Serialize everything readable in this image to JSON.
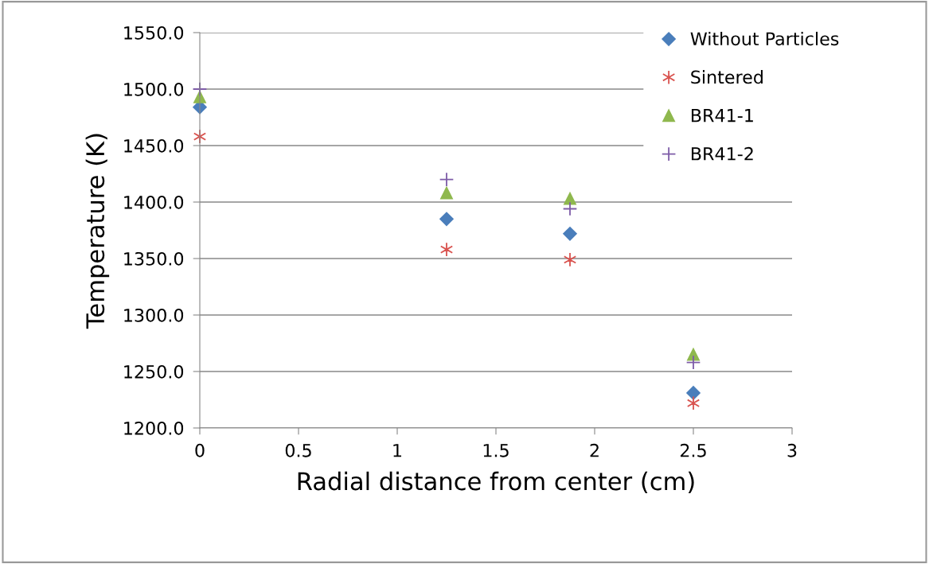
{
  "chart_data": {
    "type": "scatter",
    "xlabel": "Radial distance from center (cm)",
    "ylabel": "Temperature (K)",
    "x": [
      0,
      1.25,
      1.875,
      2.5
    ],
    "series": [
      {
        "name": "Without Particles",
        "color": "#4a7ebb",
        "marker": "diamond",
        "values": [
          1484,
          1385,
          1372,
          1231
        ]
      },
      {
        "name": "Sintered",
        "color": "#d9534f",
        "values": [
          1458,
          1358,
          1349,
          1222
        ]
      },
      {
        "name": "BR41-1",
        "color": "#8fb84e",
        "marker": "triangle",
        "values": [
          1493,
          1408,
          1403,
          1265
        ]
      },
      {
        "name": "BR41-2",
        "color": "#7e5ca8",
        "marker": "cross",
        "values": [
          1500,
          1420,
          1394,
          1258
        ]
      }
    ],
    "xlim": [
      0,
      3
    ],
    "xticks": [
      0,
      0.5,
      1,
      1.5,
      2,
      2.5,
      3
    ],
    "ylim": [
      1200,
      1550
    ],
    "yticks": [
      {
        "value": 1200,
        "label": "1200.0"
      },
      {
        "value": 1250,
        "label": "1250.0"
      },
      {
        "value": 1300,
        "label": "1300.0"
      },
      {
        "value": 1350,
        "label": "1350.0"
      },
      {
        "value": 1400,
        "label": "1400.0"
      },
      {
        "value": 1450,
        "label": "1450.0"
      },
      {
        "value": 1500,
        "label": "1500.0"
      },
      {
        "value": 1550,
        "label": "1550.0"
      }
    ],
    "grid": "y",
    "legend": "top right"
  }
}
